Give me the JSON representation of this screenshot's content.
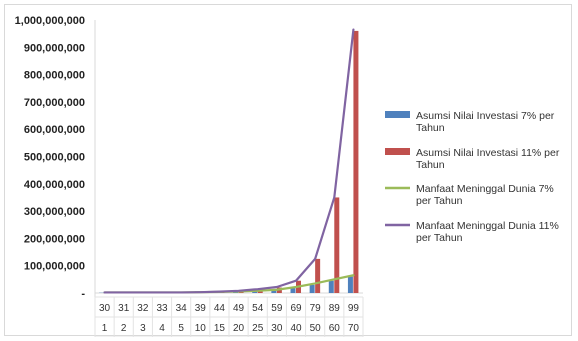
{
  "chart_data": {
    "type": "bar",
    "title": "",
    "xlabel": "",
    "ylabel": "",
    "ylim": [
      0,
      1000000000
    ],
    "y_ticks": [
      "-",
      "100,000,000",
      "200,000,000",
      "300,000,000",
      "400,000,000",
      "500,000,000",
      "600,000,000",
      "700,000,000",
      "800,000,000",
      "900,000,000",
      "1,000,000,000"
    ],
    "categories_row1": [
      "30",
      "31",
      "32",
      "33",
      "34",
      "39",
      "44",
      "49",
      "54",
      "59",
      "69",
      "79",
      "89",
      "99"
    ],
    "categories_row2": [
      "1",
      "2",
      "3",
      "4",
      "5",
      "10",
      "15",
      "20",
      "25",
      "30",
      "40",
      "50",
      "60",
      "70"
    ],
    "grid": false,
    "legend_position": "right",
    "series": [
      {
        "name": "Asumsi Nilai Investasi 7% per Tahun",
        "kind": "bar",
        "color": "#4f81bd",
        "values": [
          1000000,
          2000000,
          3000000,
          4000000,
          5000000,
          6000000,
          7000000,
          8000000,
          9000000,
          12000000,
          18000000,
          30000000,
          45000000,
          60000000
        ]
      },
      {
        "name": "Asumsi Nilai Investasi 11% per Tahun",
        "kind": "bar",
        "color": "#c0504d",
        "values": [
          1000000,
          2000000,
          3000000,
          4000000,
          5000000,
          6000000,
          8000000,
          10000000,
          12000000,
          20000000,
          45000000,
          125000000,
          350000000,
          960000000
        ]
      },
      {
        "name": "Manfaat Meninggal Dunia 7% per Tahun",
        "kind": "line",
        "color": "#9bbb59",
        "values": [
          2000000,
          2000000,
          2000000,
          2000000,
          2000000,
          3000000,
          4000000,
          6000000,
          8000000,
          12000000,
          22000000,
          35000000,
          50000000,
          65000000
        ]
      },
      {
        "name": "Manfaat Meninggal Dunia 11% per Tahun",
        "kind": "line",
        "color": "#8064a2",
        "values": [
          2000000,
          2000000,
          2000000,
          2000000,
          2000000,
          3000000,
          5000000,
          8000000,
          14000000,
          22000000,
          45000000,
          125000000,
          350000000,
          965000000
        ]
      }
    ]
  }
}
